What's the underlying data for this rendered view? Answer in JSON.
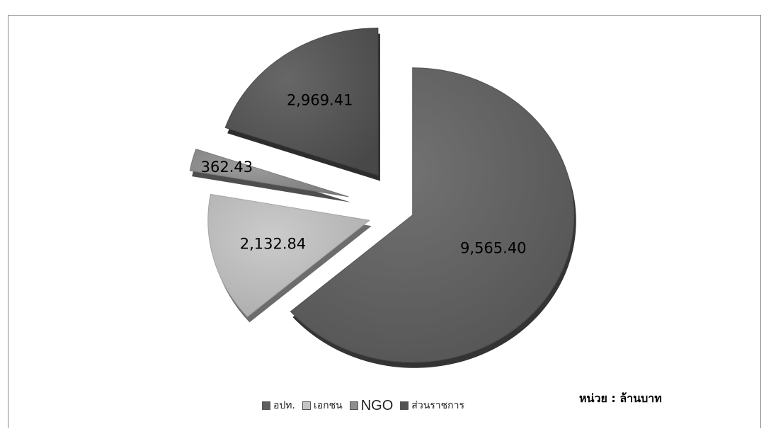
{
  "chart_data": {
    "type": "pie",
    "categories": [
      "อปท.",
      "เอกชน",
      "NGO",
      "ส่วนราชการ"
    ],
    "values": [
      9565.4,
      2132.84,
      362.43,
      2969.41
    ],
    "value_labels": [
      "9,565.40",
      "2,132.84",
      "362.43",
      "2,969.41"
    ],
    "colors": [
      "#5f5f5f",
      "#c4c4c4",
      "#8e8e8e",
      "#525252"
    ],
    "exploded": true,
    "style": "3d",
    "legend_position": "bottom",
    "unit_note": "หน่วย : ล้านบาท"
  }
}
